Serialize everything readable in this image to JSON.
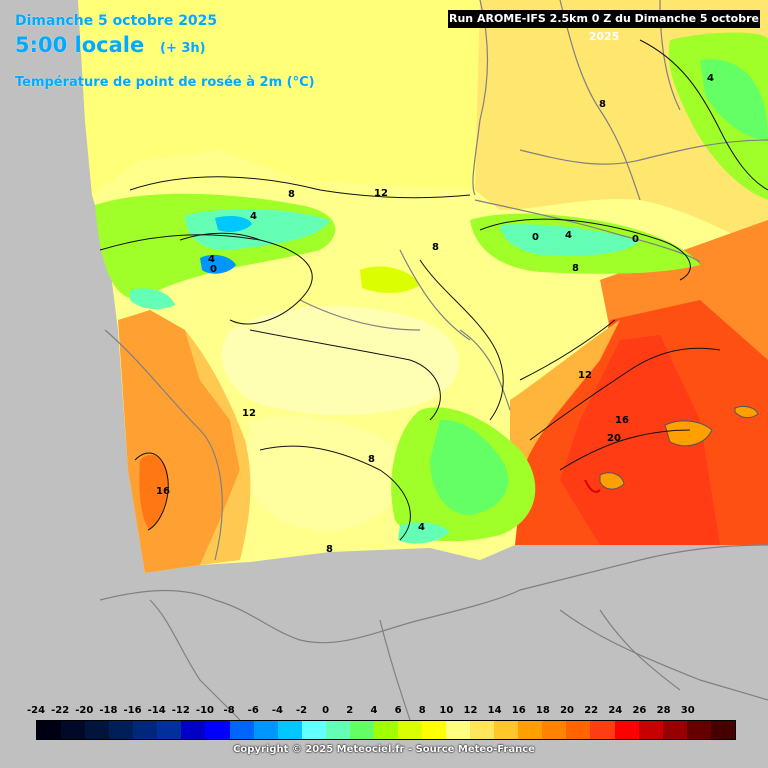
{
  "header": {
    "date": "Dimanche 5 octobre 2025",
    "time": "5:00 locale",
    "offset": "(+ 3h)",
    "parameter": "Température de point de rosée à 2m (°C)",
    "run": "Run AROME-IFS 2.5km 0 Z du Dimanche 5 octobre 2025"
  },
  "contour_labels": [
    "4",
    "8",
    "12",
    "8",
    "4",
    "0",
    "4",
    "0",
    "8",
    "0",
    "4",
    "8",
    "12",
    "12",
    "16",
    "20",
    "16",
    "8",
    "4",
    "8"
  ],
  "scale": {
    "labels": [
      "-24",
      "-22",
      "-20",
      "-18",
      "-16",
      "-14",
      "-12",
      "-10",
      "-8",
      "-6",
      "-4",
      "-2",
      "0",
      "2",
      "4",
      "6",
      "8",
      "10",
      "12",
      "14",
      "16",
      "18",
      "20",
      "22",
      "24",
      "26",
      "28",
      "30"
    ],
    "colors": [
      "#000014",
      "#000a28",
      "#00143c",
      "#001e5a",
      "#00287a",
      "#00309c",
      "#0000c8",
      "#0000ff",
      "#0064ff",
      "#0096ff",
      "#00c8ff",
      "#64ffff",
      "#64ffb4",
      "#64ff64",
      "#a0ff00",
      "#dcff00",
      "#ffff00",
      "#ffff82",
      "#ffe65a",
      "#ffc828",
      "#ffa000",
      "#ff8200",
      "#ff6400",
      "#ff3c14",
      "#ff0000",
      "#c80000",
      "#960000",
      "#640000",
      "#460000"
    ]
  },
  "footer": {
    "copyright": "Copyright © 2025 Meteociel.fr - Source Meteo-France"
  }
}
